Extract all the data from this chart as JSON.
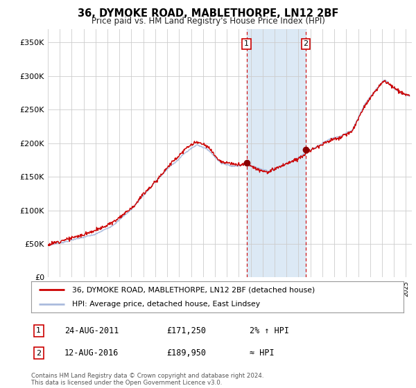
{
  "title": "36, DYMOKE ROAD, MABLETHORPE, LN12 2BF",
  "subtitle": "Price paid vs. HM Land Registry's House Price Index (HPI)",
  "ylabel_ticks": [
    "£0",
    "£50K",
    "£100K",
    "£150K",
    "£200K",
    "£250K",
    "£300K",
    "£350K"
  ],
  "ytick_values": [
    0,
    50000,
    100000,
    150000,
    200000,
    250000,
    300000,
    350000
  ],
  "ylim": [
    0,
    370000
  ],
  "xlim_start": 1995.0,
  "xlim_end": 2025.5,
  "background_color": "#ffffff",
  "plot_bg_color": "#ffffff",
  "grid_color": "#cccccc",
  "hpi_color": "#aabbdd",
  "price_color": "#cc0000",
  "sale1_x": 2011.646,
  "sale1_y": 171250,
  "sale2_x": 2016.617,
  "sale2_y": 189950,
  "shade_x1": 2011.646,
  "shade_x2": 2016.617,
  "shade_color": "#dce9f5",
  "legend_line1": "36, DYMOKE ROAD, MABLETHORPE, LN12 2BF (detached house)",
  "legend_line2": "HPI: Average price, detached house, East Lindsey",
  "table_row1_num": "1",
  "table_row1_date": "24-AUG-2011",
  "table_row1_price": "£171,250",
  "table_row1_hpi": "2% ↑ HPI",
  "table_row2_num": "2",
  "table_row2_date": "12-AUG-2016",
  "table_row2_price": "£189,950",
  "table_row2_hpi": "≈ HPI",
  "footnote": "Contains HM Land Registry data © Crown copyright and database right 2024.\nThis data is licensed under the Open Government Licence v3.0."
}
